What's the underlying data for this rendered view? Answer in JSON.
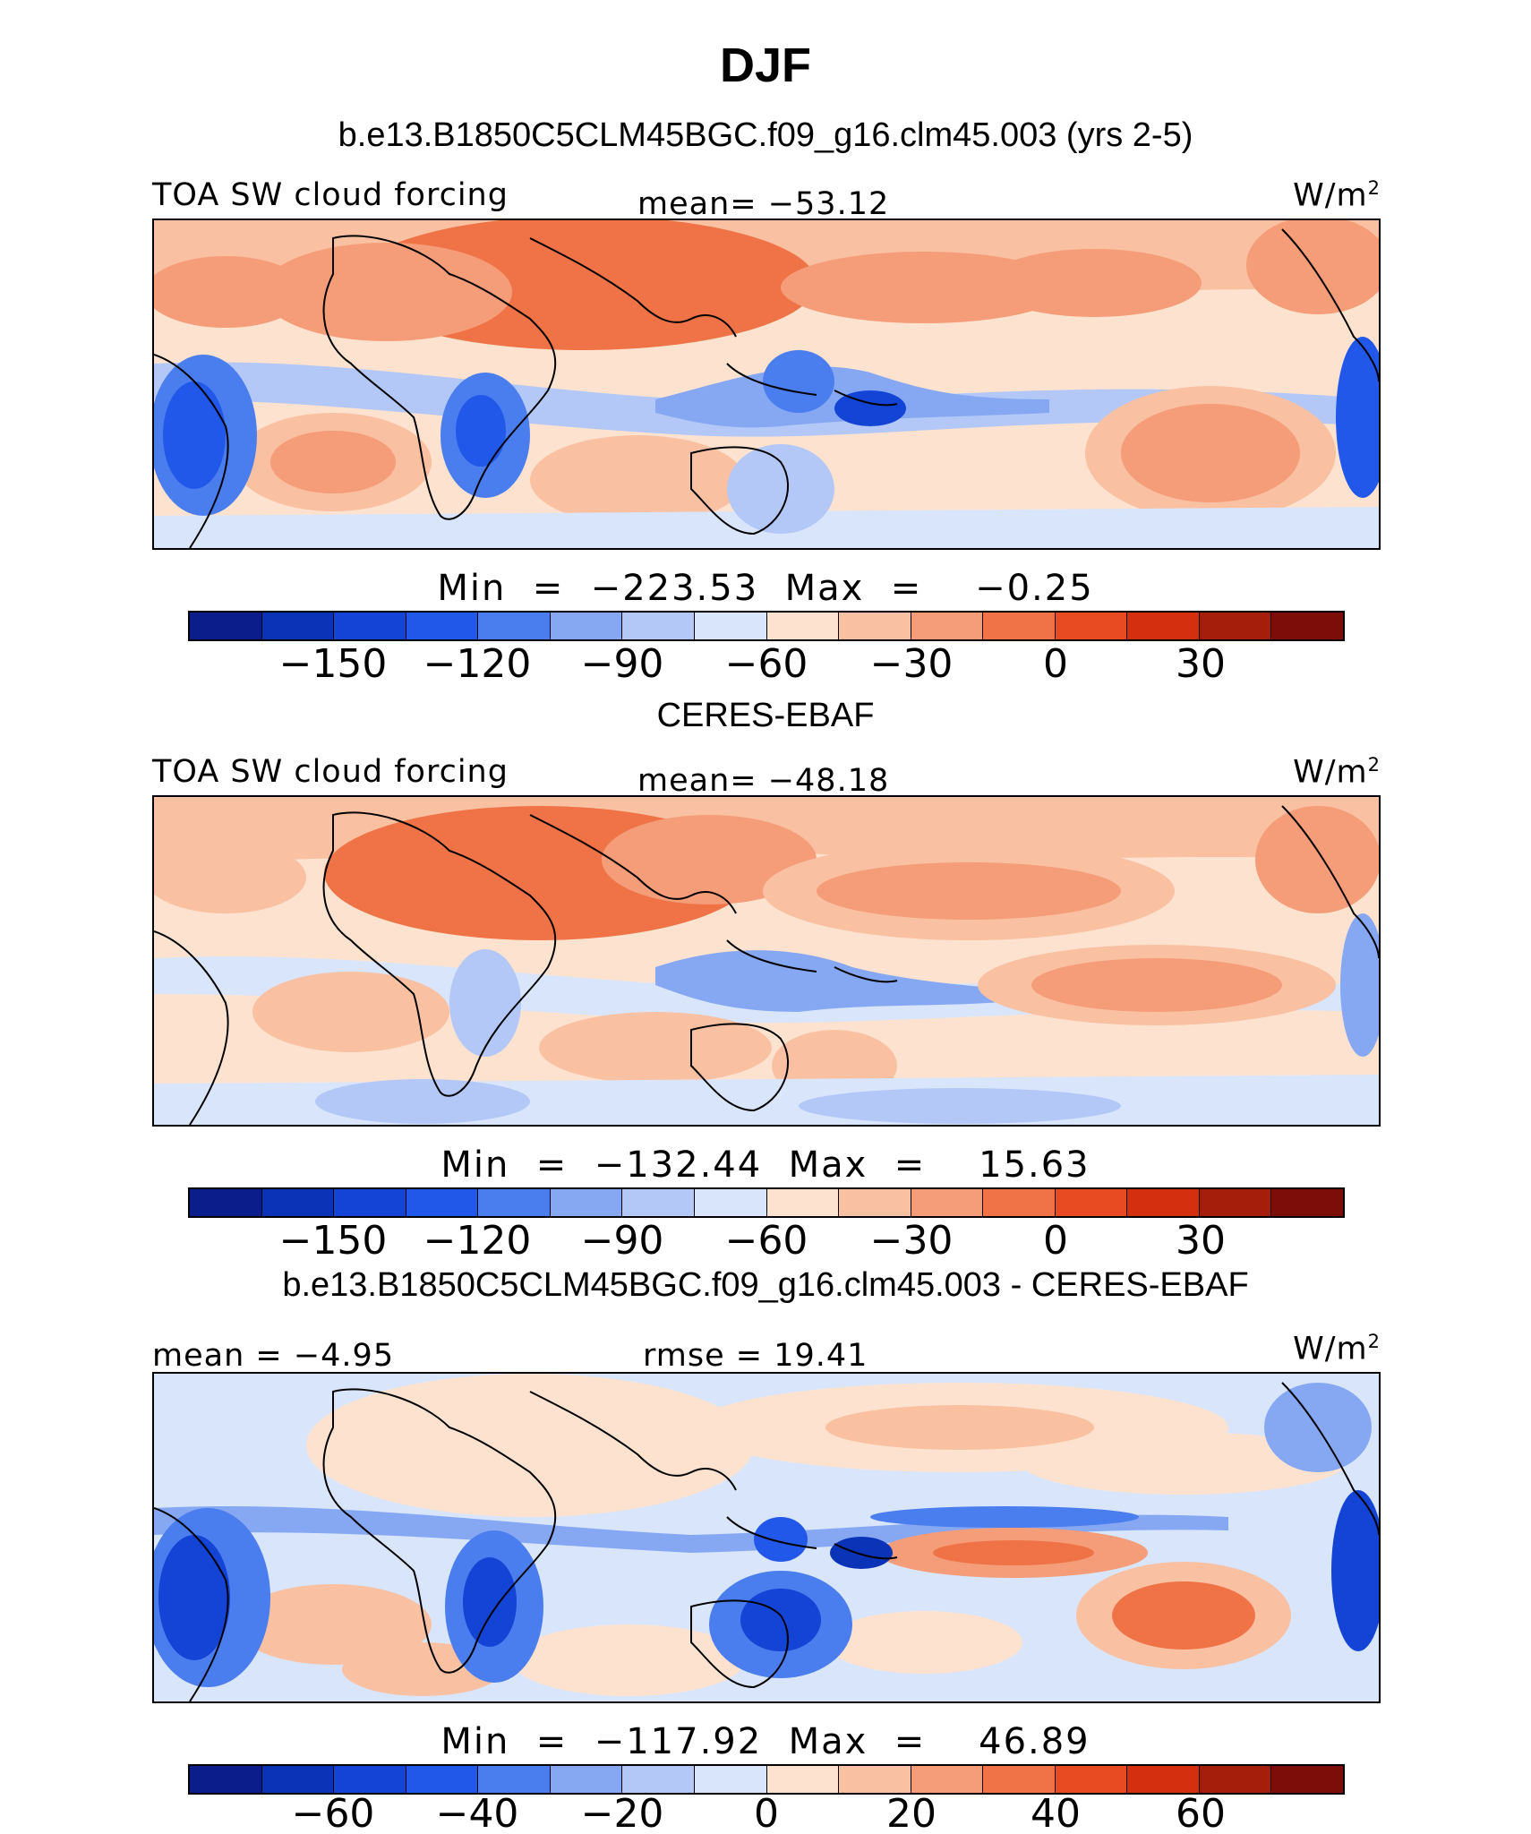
{
  "title": "DJF",
  "panels": [
    {
      "heading": "b.e13.B1850C5CLM45BGC.f09_g16.clm45.003 (yrs 2-5)",
      "left_label": "TOA SW cloud forcing",
      "center_label": "mean= −53.12",
      "units_base": "W/m",
      "units_exp": "2",
      "minmax": "Min  =  −223.53  Max  =    −0.25",
      "ticks": [
        "−150",
        "−120",
        "−90",
        "−60",
        "−30",
        "0",
        "30"
      ]
    },
    {
      "heading": "CERES-EBAF",
      "left_label": "TOA SW cloud forcing",
      "center_label": "mean= −48.18",
      "units_base": "W/m",
      "units_exp": "2",
      "minmax": "Min  =  −132.44  Max  =    15.63",
      "ticks": [
        "−150",
        "−120",
        "−90",
        "−60",
        "−30",
        "0",
        "30"
      ]
    },
    {
      "heading": "b.e13.B1850C5CLM45BGC.f09_g16.clm45.003 - CERES-EBAF",
      "left_label": "mean =   −4.95",
      "center_label": "rmse =   19.41",
      "units_base": "W/m",
      "units_exp": "2",
      "minmax": "Min  =  −117.92  Max  =    46.89",
      "ticks": [
        "−60",
        "−40",
        "−20",
        "0",
        "20",
        "40",
        "60"
      ]
    }
  ],
  "colorbar_colors": [
    "#0a1d8a",
    "#0a33b8",
    "#1444d6",
    "#2258ea",
    "#4a7ded",
    "#86a8f3",
    "#b3c8f7",
    "#d9e5fb",
    "#fde3cf",
    "#f9c0a2",
    "#f59c78",
    "#ef7346",
    "#e84a22",
    "#d42f0f",
    "#a51e0b",
    "#7c0d08"
  ],
  "colors": {
    "land_outline": "#000000",
    "strong_negative": "#1444d6",
    "moderate_negative": "#86a8f3",
    "weak_negative": "#d9e5fb",
    "weak_positive": "#fde3cf",
    "moderate_positive": "#f59c78",
    "strong_positive": "#ef7346"
  }
}
